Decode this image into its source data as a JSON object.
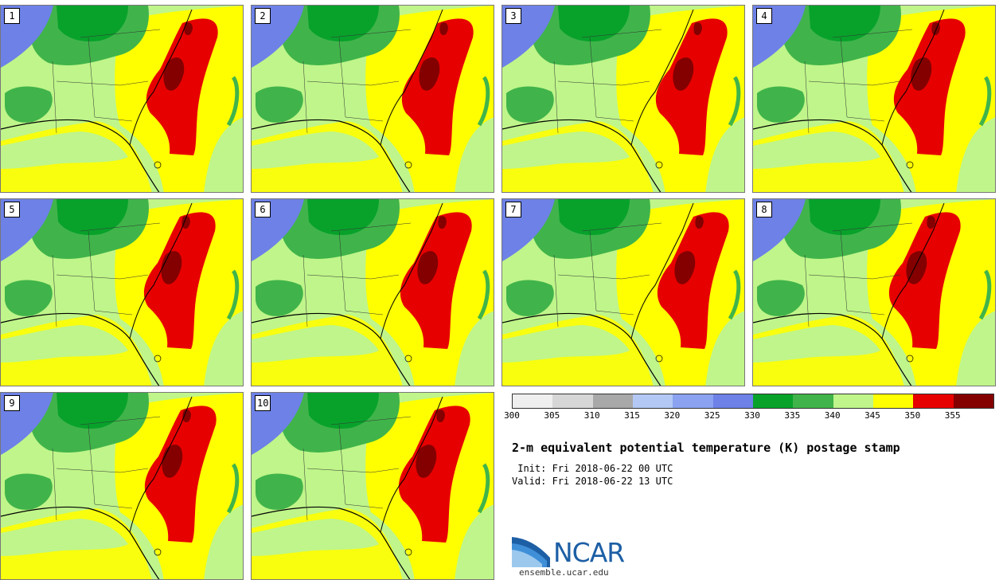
{
  "panels": [
    {
      "label": "1"
    },
    {
      "label": "2"
    },
    {
      "label": "3"
    },
    {
      "label": "4"
    },
    {
      "label": "5"
    },
    {
      "label": "6"
    },
    {
      "label": "7"
    },
    {
      "label": "8"
    },
    {
      "label": "9"
    },
    {
      "label": "10"
    }
  ],
  "colorbar": {
    "colors": [
      "#efefef",
      "#d6d6d6",
      "#a8a8a8",
      "#b3c8f4",
      "#8aa2f0",
      "#6d81e7",
      "#08a22b",
      "#40b44a",
      "#bff58a",
      "#ffff00",
      "#e70000",
      "#840000"
    ],
    "ticks": [
      "300",
      "305",
      "310",
      "315",
      "320",
      "325",
      "330",
      "335",
      "340",
      "345",
      "350",
      "355"
    ]
  },
  "title": "2-m equivalent potential temperature (K) postage stamp",
  "init": " Init: Fri 2018-06-22 00 UTC",
  "valid": "Valid: Fri 2018-06-22 13 UTC",
  "logo": {
    "brand": "NCAR",
    "url": "ensemble.ucar.edu"
  }
}
